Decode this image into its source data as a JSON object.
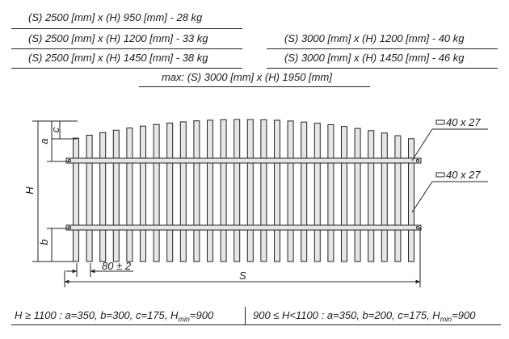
{
  "specs": {
    "left": [
      "(S) 2500 [mm] x (H) 950 [mm]   -  28 kg",
      "(S) 2500 [mm] x (H) 1200 [mm]  -  33 kg",
      "(S) 2500 [mm] x (H) 1450 [mm]  -  38 kg"
    ],
    "right": [
      "(S) 3000 [mm] x (H) 1200 [mm]  -  40 kg",
      "(S) 3000 [mm] x (H) 1450 [mm]  -  46 kg"
    ],
    "max": "max: (S) 3000 [mm] x (H) 1950 [mm]"
  },
  "drawing": {
    "dim_c": "c",
    "dim_a": "a",
    "dim_H": "H",
    "dim_b": "b",
    "dim_spacing": "80 ± 2",
    "dim_S": "S",
    "rail_top_label": "40 x 27",
    "rail_bottom_label": "40 x 27"
  },
  "notes": {
    "left_prefix": "H ≥ 1100 : a=350, b=300, c=175, H",
    "left_sub": "min",
    "left_suffix": "=900",
    "right_prefix": "900 ≤ H<1100 : a=350, b=200, c=175, H",
    "right_sub": "min",
    "right_suffix": "=900"
  },
  "colors": {
    "line": "#222222",
    "picket_fill": "#e6e6e6",
    "rail_fill": "#e6e6e6"
  }
}
